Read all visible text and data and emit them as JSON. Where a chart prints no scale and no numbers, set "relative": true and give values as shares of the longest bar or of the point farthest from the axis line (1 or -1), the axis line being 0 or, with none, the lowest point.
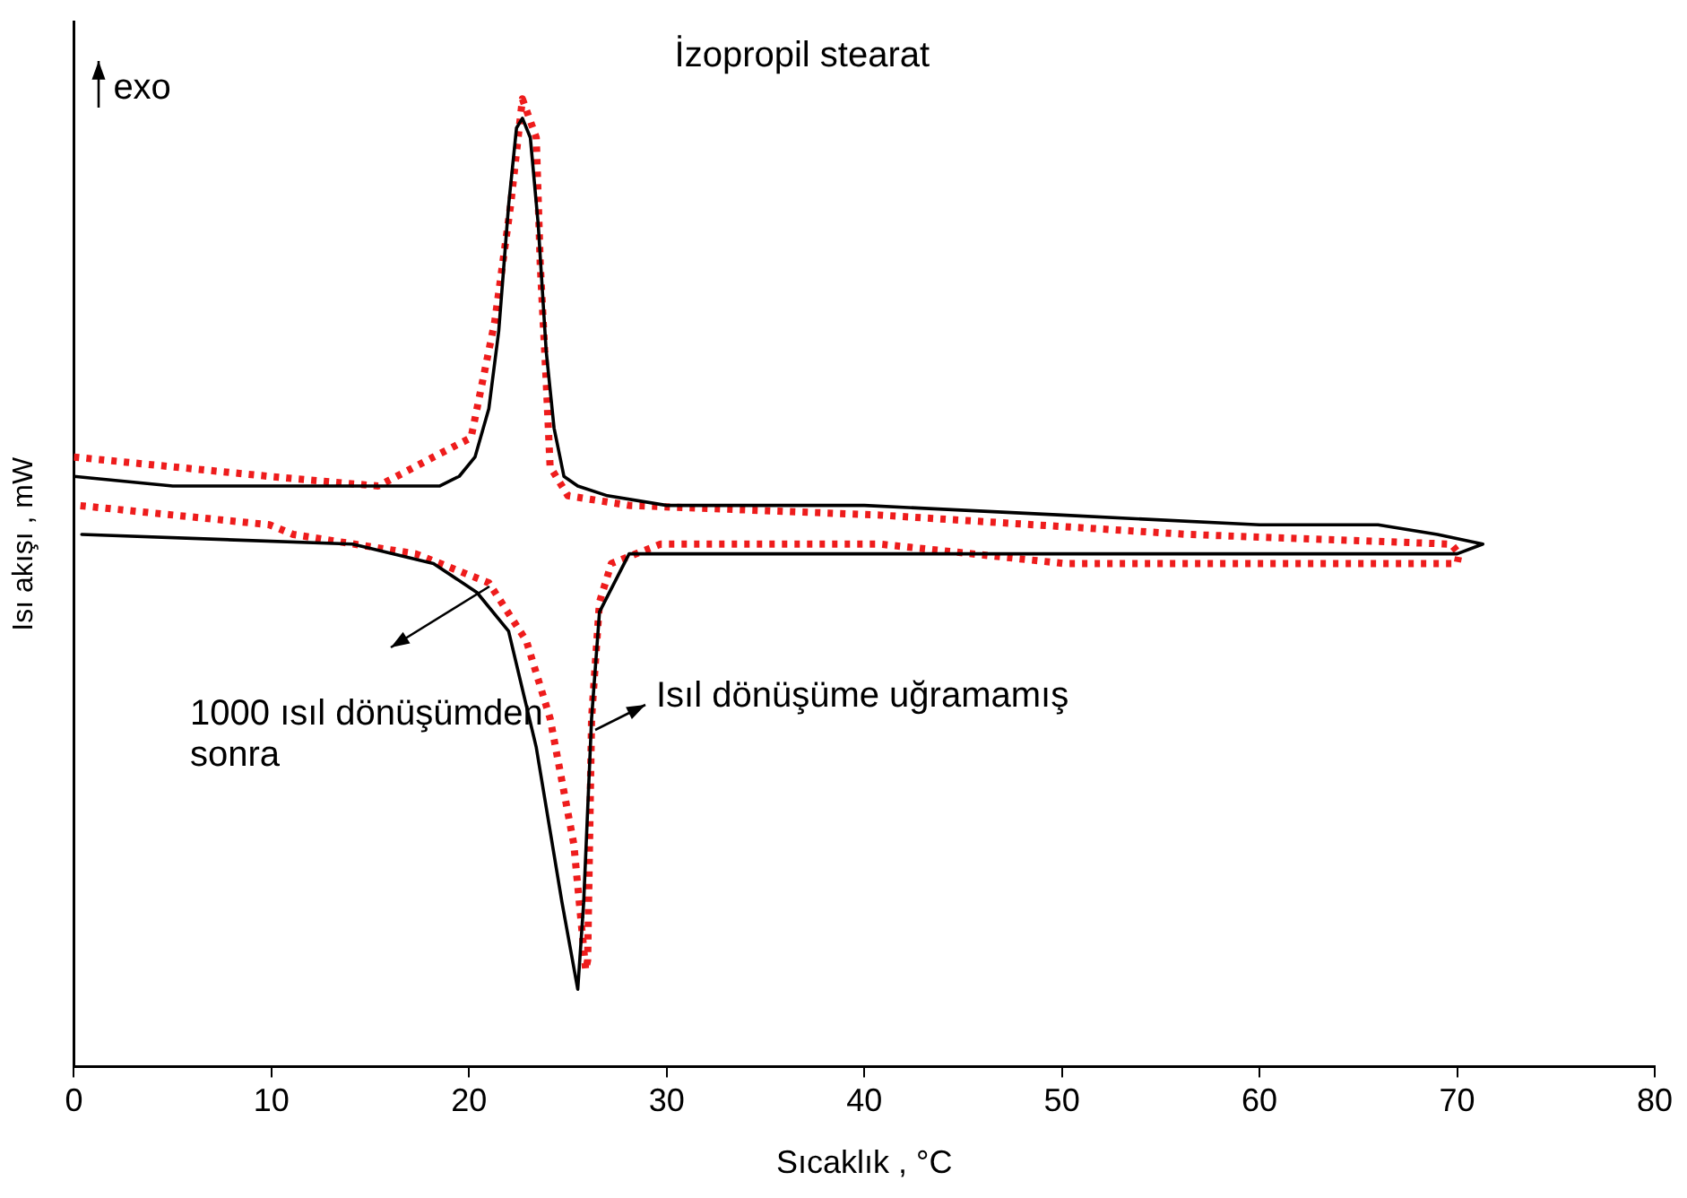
{
  "chart_data": {
    "type": "line",
    "title": "İzopropil stearat",
    "xlabel": "Sıcaklık , °C",
    "ylabel": "Isı akışı , mW",
    "relative": true,
    "grid": false,
    "marker": "none",
    "xlim": [
      0,
      80
    ],
    "xticks": [
      0,
      10,
      20,
      30,
      40,
      50,
      60,
      70,
      80
    ],
    "annotations": [
      "exo"
    ],
    "series": [
      {
        "name": "Isıl dönüşüme uğramamış",
        "color": "#000000",
        "line_style": "solid",
        "x": [
          0,
          5,
          10,
          15,
          17,
          18.5,
          19.5,
          20.3,
          21,
          21.5,
          22,
          22.4,
          22.7,
          23.1,
          23.5,
          23.9,
          24.3,
          24.8,
          25.5,
          27,
          30,
          40,
          50,
          60,
          66,
          69,
          71.3,
          70,
          65,
          50,
          40,
          30,
          28.1,
          26.6,
          26.2,
          25.8,
          25.5,
          24.7,
          23.4,
          22,
          20.4,
          18.2,
          14.1,
          0.4
        ],
        "values": [
          0.61,
          0.6,
          0.6,
          0.6,
          0.6,
          0.6,
          0.61,
          0.63,
          0.68,
          0.76,
          0.89,
          0.97,
          0.98,
          0.96,
          0.87,
          0.74,
          0.66,
          0.61,
          0.6,
          0.59,
          0.58,
          0.58,
          0.57,
          0.56,
          0.56,
          0.55,
          0.54,
          0.53,
          0.53,
          0.53,
          0.53,
          0.53,
          0.53,
          0.47,
          0.36,
          0.17,
          0.08,
          0.17,
          0.33,
          0.45,
          0.49,
          0.52,
          0.54,
          0.55
        ]
      },
      {
        "name": "1000 ısıl dönüşümden sonra",
        "color": "#ee1c1c",
        "line_style": "dotted",
        "x": [
          0,
          9.9,
          15.4,
          18.2,
          20.1,
          21.3,
          22.1,
          22.7,
          23.4,
          23.6,
          23.9,
          24.1,
          25,
          28.1,
          40.8,
          56.4,
          69.7,
          70.1,
          70,
          62.5,
          50.1,
          40.8,
          29.7,
          27.2,
          26.6,
          26.2,
          26,
          25.9,
          25.3,
          24.1,
          22.9,
          21,
          17.3,
          11.1,
          9.9,
          0.2
        ],
        "values": [
          0.63,
          0.61,
          0.6,
          0.63,
          0.65,
          0.77,
          0.89,
          1,
          0.96,
          0.83,
          0.71,
          0.62,
          0.59,
          0.58,
          0.57,
          0.55,
          0.54,
          0.53,
          0.52,
          0.52,
          0.52,
          0.54,
          0.54,
          0.52,
          0.48,
          0.36,
          0.11,
          0.1,
          0.23,
          0.36,
          0.44,
          0.5,
          0.53,
          0.55,
          0.56,
          0.58
        ]
      }
    ]
  }
}
